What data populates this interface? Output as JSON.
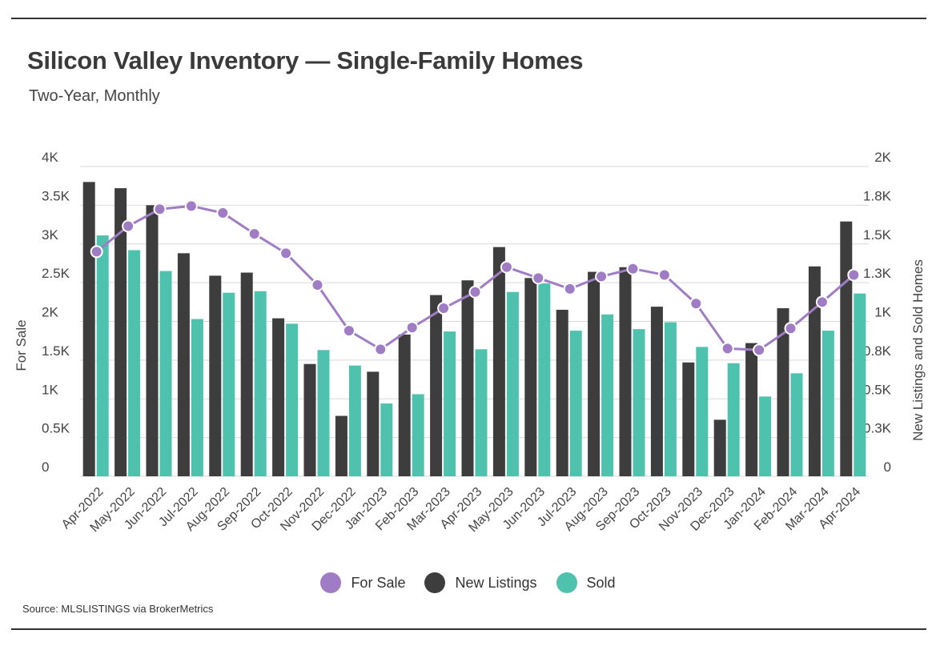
{
  "header": {
    "title": "Silicon Valley Inventory — Single-Family Homes",
    "subtitle": "Two-Year, Monthly"
  },
  "legend": {
    "items": [
      {
        "label": "For Sale",
        "color": "#a07cc5"
      },
      {
        "label": "New Listings",
        "color": "#3d3d3d"
      },
      {
        "label": "Sold",
        "color": "#4fc2ad"
      }
    ]
  },
  "footer": {
    "source": "Source:  MLSLISTINGS via BrokerMetrics"
  },
  "chart_data": {
    "type": "bar",
    "categories": [
      "Apr-2022",
      "May-2022",
      "Jun-2022",
      "Jul-2022",
      "Aug-2022",
      "Sep-2022",
      "Oct-2022",
      "Nov-2022",
      "Dec-2022",
      "Jan-2023",
      "Feb-2023",
      "Mar-2023",
      "Apr-2023",
      "May-2023",
      "Jun-2023",
      "Jul-2023",
      "Aug-2023",
      "Sep-2023",
      "Oct-2023",
      "Nov-2023",
      "Dec-2023",
      "Jan-2024",
      "Feb-2024",
      "Mar-2024",
      "Apr-2024"
    ],
    "series": [
      {
        "name": "New Listings",
        "type": "bar",
        "axis": "right",
        "color": "#3d3d3d",
        "values": [
          1900,
          1860,
          1750,
          1440,
          1295,
          1315,
          1020,
          725,
          390,
          675,
          915,
          1170,
          1265,
          1480,
          1280,
          1075,
          1320,
          1350,
          1095,
          735,
          365,
          860,
          1085,
          1355,
          1645
        ]
      },
      {
        "name": "Sold",
        "type": "bar",
        "axis": "right",
        "color": "#4fc2ad",
        "values": [
          1555,
          1460,
          1325,
          1015,
          1185,
          1195,
          985,
          815,
          715,
          470,
          530,
          935,
          820,
          1190,
          1245,
          940,
          1045,
          950,
          995,
          835,
          730,
          515,
          665,
          940,
          1180
        ]
      },
      {
        "name": "For Sale",
        "type": "line",
        "axis": "left",
        "color": "#a07cc5",
        "values": [
          2900,
          3230,
          3450,
          3490,
          3400,
          3130,
          2880,
          2470,
          1880,
          1640,
          1920,
          2170,
          2380,
          2700,
          2560,
          2420,
          2580,
          2680,
          2600,
          2230,
          1650,
          1630,
          1910,
          2250,
          2600
        ]
      }
    ],
    "left_axis": {
      "label": "For Sale",
      "range": [
        0,
        4000
      ],
      "ticks": [
        "0",
        "0.5K",
        "1K",
        "1.5K",
        "2K",
        "2.5K",
        "3K",
        "3.5K",
        "4K"
      ]
    },
    "right_axis": {
      "label": "New Listings and Sold Homes",
      "range": [
        0,
        2000
      ],
      "ticks": [
        "0",
        "0.3K",
        "0.5K",
        "0.8K",
        "1K",
        "1.3K",
        "1.5K",
        "1.8K",
        "2K"
      ]
    },
    "grid": true,
    "legend_position": "bottom"
  }
}
